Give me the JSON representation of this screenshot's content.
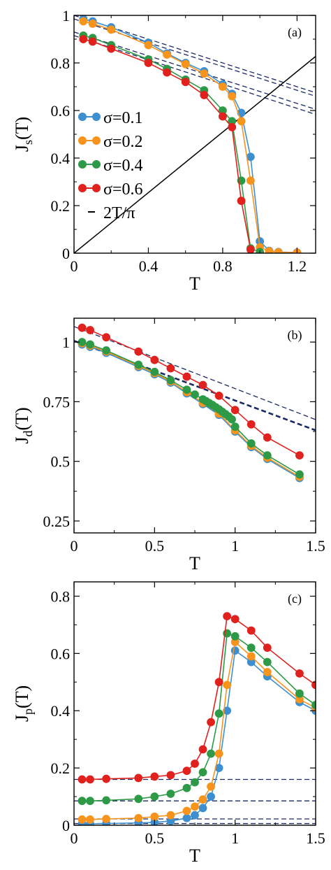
{
  "colors": {
    "sigma_0_1": "#3d8fcf",
    "sigma_0_2": "#f7941d",
    "sigma_0_4": "#2e9a47",
    "sigma_0_6": "#e0211d",
    "dashed": "#1a2a66",
    "line": "#000000"
  },
  "chart_data": [
    {
      "type": "line",
      "panel_label": "(a)",
      "xlabel": "T",
      "ylabel": "J_s(T)",
      "xlim": [
        0,
        1.3
      ],
      "ylim": [
        0,
        1.0
      ],
      "xticks": [
        "0",
        "0.4",
        "0.8",
        "1.2"
      ],
      "yticks": [
        "0",
        "0.2",
        "0.4",
        "0.6",
        "0.8",
        "1"
      ],
      "legend": {
        "entries": [
          "σ=0.1",
          "σ=0.2",
          "σ=0.4",
          "σ=0.6"
        ],
        "line_entry": "2T/π",
        "placement": "left-middle"
      },
      "series": [
        {
          "name": "σ=0.1",
          "x": [
            0.05,
            0.1,
            0.2,
            0.4,
            0.5,
            0.6,
            0.7,
            0.8,
            0.85,
            0.9,
            0.95,
            1.0,
            1.05,
            1.1,
            1.2
          ],
          "y": [
            0.985,
            0.975,
            0.95,
            0.885,
            0.84,
            0.8,
            0.765,
            0.71,
            0.67,
            0.59,
            0.405,
            0.05,
            0.01,
            0.005,
            0.003
          ]
        },
        {
          "name": "σ=0.2",
          "x": [
            0.05,
            0.1,
            0.2,
            0.4,
            0.5,
            0.6,
            0.7,
            0.8,
            0.85,
            0.9,
            0.95,
            1.0,
            1.05,
            1.1,
            1.2
          ],
          "y": [
            0.975,
            0.965,
            0.94,
            0.875,
            0.835,
            0.795,
            0.755,
            0.7,
            0.66,
            0.555,
            0.305,
            0.025,
            0.008,
            0.004,
            0.002
          ]
        },
        {
          "name": "σ=0.4",
          "x": [
            0.05,
            0.1,
            0.2,
            0.4,
            0.5,
            0.6,
            0.7,
            0.8,
            0.85,
            0.9,
            0.95,
            1.0
          ],
          "y": [
            0.915,
            0.905,
            0.875,
            0.815,
            0.775,
            0.73,
            0.685,
            0.6,
            0.555,
            0.305,
            0.02,
            0.005
          ]
        },
        {
          "name": "σ=0.6",
          "x": [
            0.05,
            0.1,
            0.2,
            0.4,
            0.5,
            0.6,
            0.7,
            0.8,
            0.85,
            0.9,
            0.95
          ],
          "y": [
            0.9,
            0.89,
            0.86,
            0.8,
            0.76,
            0.72,
            0.665,
            0.575,
            0.53,
            0.22,
            0.015
          ]
        }
      ],
      "reference_line": {
        "name": "2T/π",
        "slope": 0.63662
      },
      "dashed_lines": [
        {
          "y0": 1.0,
          "slope": -0.25
        },
        {
          "y0": 0.985,
          "slope": -0.25
        },
        {
          "y0": 0.93,
          "slope": -0.25
        },
        {
          "y0": 0.915,
          "slope": -0.255
        }
      ]
    },
    {
      "type": "line",
      "panel_label": "(b)",
      "xlabel": "T",
      "ylabel": "J_d(T)",
      "xlim": [
        0,
        1.5
      ],
      "ylim": [
        0.2,
        1.1
      ],
      "xticks": [
        "0",
        "0.5",
        "1",
        "1.5"
      ],
      "yticks": [
        "0.25",
        "0.5",
        "0.75",
        "1"
      ],
      "series": [
        {
          "name": "σ=0.1",
          "x": [
            0.05,
            0.1,
            0.2,
            0.4,
            0.5,
            0.6,
            0.7,
            0.8,
            0.9,
            1.0,
            1.1,
            1.2,
            1.4
          ],
          "y": [
            0.99,
            0.98,
            0.955,
            0.895,
            0.865,
            0.83,
            0.785,
            0.74,
            0.695,
            0.625,
            0.56,
            0.51,
            0.43
          ]
        },
        {
          "name": "σ=0.2",
          "x": [
            0.05,
            0.1,
            0.2,
            0.4,
            0.5,
            0.6,
            0.7,
            0.8,
            0.9,
            1.0,
            1.1,
            1.2,
            1.4
          ],
          "y": [
            0.995,
            0.985,
            0.96,
            0.9,
            0.87,
            0.835,
            0.79,
            0.745,
            0.7,
            0.63,
            0.565,
            0.515,
            0.435
          ]
        },
        {
          "name": "σ=0.4",
          "x": [
            0.05,
            0.1,
            0.2,
            0.4,
            0.5,
            0.6,
            0.7,
            0.75,
            0.8,
            0.82,
            0.84,
            0.86,
            0.88,
            0.9,
            0.92,
            0.94,
            0.96,
            0.98,
            1.0,
            1.1,
            1.2,
            1.4
          ],
          "y": [
            1.0,
            0.99,
            0.965,
            0.905,
            0.875,
            0.84,
            0.8,
            0.78,
            0.76,
            0.752,
            0.744,
            0.736,
            0.727,
            0.718,
            0.708,
            0.698,
            0.688,
            0.676,
            0.645,
            0.575,
            0.525,
            0.445
          ]
        },
        {
          "name": "σ=0.6",
          "x": [
            0.05,
            0.1,
            0.2,
            0.4,
            0.5,
            0.6,
            0.7,
            0.8,
            0.9,
            1.0,
            1.1,
            1.2,
            1.4
          ],
          "y": [
            1.06,
            1.05,
            1.02,
            0.96,
            0.925,
            0.89,
            0.855,
            0.82,
            0.775,
            0.715,
            0.655,
            0.6,
            0.525
          ]
        }
      ],
      "dashed_lines": [
        {
          "y0": 1.065,
          "slope": -0.26,
          "bold": false
        },
        {
          "y0": 1.005,
          "slope": -0.25,
          "bold": true
        }
      ]
    },
    {
      "type": "line",
      "panel_label": "(c)",
      "xlabel": "T",
      "ylabel": "J_p(T)",
      "xlim": [
        0,
        1.5
      ],
      "ylim": [
        0,
        0.85
      ],
      "xticks": [
        "0",
        "0.5",
        "1",
        "1.5"
      ],
      "yticks": [
        "0",
        "0.2",
        "0.4",
        "0.6",
        "0.8"
      ],
      "series": [
        {
          "name": "σ=0.1",
          "x": [
            0.05,
            0.1,
            0.2,
            0.4,
            0.5,
            0.6,
            0.7,
            0.75,
            0.8,
            0.85,
            0.9,
            0.95,
            1.0,
            1.1,
            1.2,
            1.4,
            1.5
          ],
          "y": [
            0.005,
            0.005,
            0.006,
            0.008,
            0.01,
            0.015,
            0.025,
            0.035,
            0.06,
            0.1,
            0.2,
            0.4,
            0.61,
            0.57,
            0.52,
            0.43,
            0.4
          ]
        },
        {
          "name": "σ=0.2",
          "x": [
            0.05,
            0.1,
            0.2,
            0.4,
            0.5,
            0.6,
            0.7,
            0.75,
            0.8,
            0.85,
            0.9,
            0.95,
            1.0,
            1.1,
            1.2,
            1.4,
            1.5
          ],
          "y": [
            0.02,
            0.02,
            0.022,
            0.025,
            0.03,
            0.035,
            0.05,
            0.065,
            0.09,
            0.135,
            0.25,
            0.49,
            0.64,
            0.59,
            0.535,
            0.44,
            0.41
          ]
        },
        {
          "name": "σ=0.4",
          "x": [
            0.05,
            0.1,
            0.2,
            0.4,
            0.5,
            0.6,
            0.7,
            0.75,
            0.8,
            0.85,
            0.9,
            0.95,
            1.0,
            1.1,
            1.2,
            1.4,
            1.5
          ],
          "y": [
            0.085,
            0.085,
            0.087,
            0.092,
            0.1,
            0.11,
            0.13,
            0.15,
            0.185,
            0.25,
            0.39,
            0.67,
            0.66,
            0.62,
            0.57,
            0.46,
            0.42
          ]
        },
        {
          "name": "σ=0.6",
          "x": [
            0.05,
            0.1,
            0.2,
            0.4,
            0.5,
            0.6,
            0.7,
            0.75,
            0.8,
            0.85,
            0.9,
            0.95,
            1.0,
            1.1,
            1.2,
            1.4,
            1.5
          ],
          "y": [
            0.16,
            0.16,
            0.162,
            0.165,
            0.17,
            0.175,
            0.19,
            0.215,
            0.265,
            0.36,
            0.5,
            0.73,
            0.72,
            0.68,
            0.62,
            0.53,
            0.49
          ]
        }
      ],
      "dashed_lines": [
        {
          "y0": 0.16,
          "slope": 0
        },
        {
          "y0": 0.085,
          "slope": 0
        },
        {
          "y0": 0.022,
          "slope": 0
        },
        {
          "y0": 0.006,
          "slope": 0
        }
      ]
    }
  ]
}
